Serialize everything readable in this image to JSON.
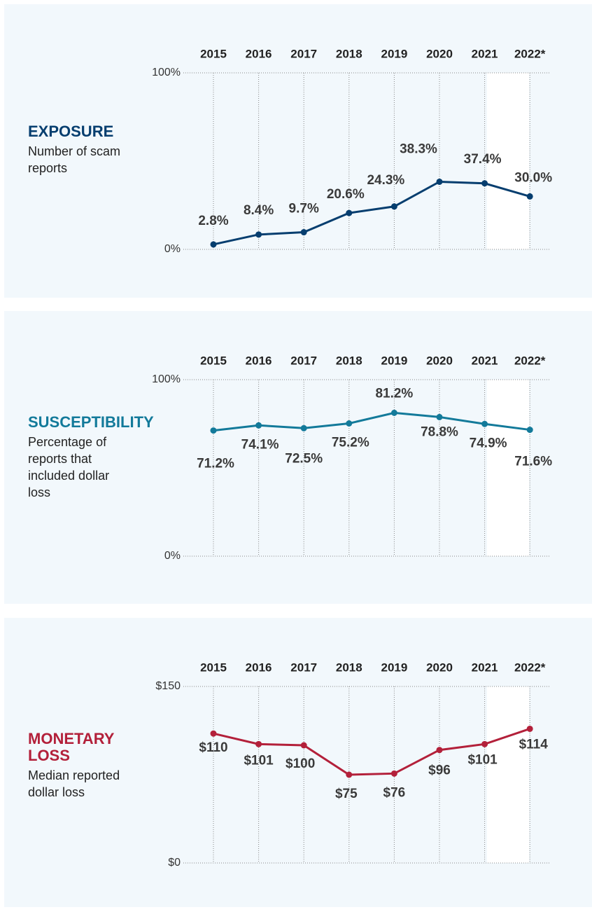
{
  "chart_data": [
    {
      "type": "line",
      "title": "EXPOSURE",
      "subtitle": "Number of scam reports",
      "categories": [
        "2015",
        "2016",
        "2017",
        "2018",
        "2019",
        "2020",
        "2021",
        "2022*"
      ],
      "values": [
        2.8,
        8.4,
        9.7,
        20.6,
        24.3,
        38.3,
        37.4,
        30.0
      ],
      "value_labels": [
        "2.8%",
        "8.4%",
        "9.7%",
        "20.6%",
        "24.3%",
        "38.3%",
        "37.4%",
        "30.0%"
      ],
      "color": "#063e6f",
      "ylim": [
        0,
        100
      ],
      "yticks": [
        {
          "value": 0,
          "label": "0%"
        },
        {
          "value": 100,
          "label": "100%"
        }
      ]
    },
    {
      "type": "line",
      "title": "SUSCEPTIBILITY",
      "subtitle": "Percentage of reports that included dollar loss",
      "categories": [
        "2015",
        "2016",
        "2017",
        "2018",
        "2019",
        "2020",
        "2021",
        "2022*"
      ],
      "values": [
        71.2,
        74.1,
        72.5,
        75.2,
        81.2,
        78.8,
        74.9,
        71.6
      ],
      "value_labels": [
        "71.2%",
        "74.1%",
        "72.5%",
        "75.2%",
        "81.2%",
        "78.8%",
        "74.9%",
        "71.6%"
      ],
      "color": "#137a9a",
      "ylim": [
        0,
        100
      ],
      "yticks": [
        {
          "value": 0,
          "label": "0%"
        },
        {
          "value": 100,
          "label": "100%"
        }
      ]
    },
    {
      "type": "line",
      "title": "MONETARY LOSS",
      "subtitle": "Median reported dollar loss",
      "categories": [
        "2015",
        "2016",
        "2017",
        "2018",
        "2019",
        "2020",
        "2021",
        "2022*"
      ],
      "values": [
        110,
        101,
        100,
        75,
        76,
        96,
        101,
        114
      ],
      "value_labels": [
        "$110",
        "$101",
        "$100",
        "$75",
        "$76",
        "$96",
        "$101",
        "$114"
      ],
      "color": "#b3203a",
      "ylim": [
        0,
        150
      ],
      "yticks": [
        {
          "value": 0,
          "label": "$0"
        },
        {
          "value": 150,
          "label": "$150"
        }
      ]
    }
  ]
}
